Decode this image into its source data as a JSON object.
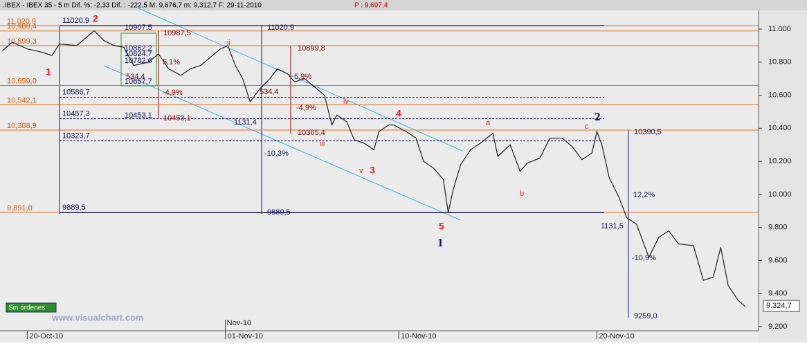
{
  "chart_data": {
    "type": "line",
    "header": ".IBEX - IBEX 35 -  5 m Dif. %: -2,33 Dif. : -222,5 M: 9,676,7 m: 9,312,7 F: 29-11-2010",
    "header_price": "P : 9,697,4",
    "color": "#202020",
    "x": [
      -1.0,
      -0.6,
      0,
      0.6,
      1.0,
      1.3,
      2.0,
      2.7,
      3.1,
      3.5,
      3.9,
      4.3,
      4.9,
      5.3,
      5.7,
      6.2,
      6.6,
      7.0,
      7.4,
      7.8,
      8.1,
      8.4,
      8.7,
      9.0,
      9.4,
      9.8,
      10.1,
      10.5,
      10.8,
      11.2,
      11.6,
      12.0,
      12.3,
      12.5,
      12.9,
      13.2,
      13.6,
      14.0,
      14.2,
      14.6,
      14.8,
      15.3,
      15.7,
      16.0,
      16.4,
      16.8,
      17.0,
      17.2,
      17.5,
      17.9,
      18.3,
      18.8,
      19.0,
      19.5,
      19.9,
      20.2,
      20.7,
      21.1,
      21.6,
      22.0,
      22.4,
      22.8,
      23.0,
      23.2,
      23.5,
      23.9,
      24.2,
      24.6,
      25.1,
      25.5,
      25.9,
      26.3,
      26.9,
      27.3,
      27.7,
      28.0,
      28.3,
      28.7,
      29.0
    ],
    "values": [
      10870,
      10920,
      10880,
      10860,
      10840,
      10910,
      10900,
      10990,
      10930,
      10900,
      10890,
      10780,
      10800,
      10850,
      10760,
      10720,
      10760,
      10780,
      10830,
      10880,
      10900,
      10780,
      10700,
      10560,
      10640,
      10700,
      10760,
      10730,
      10680,
      10700,
      10650,
      10600,
      10420,
      10480,
      10440,
      10330,
      10310,
      10270,
      10380,
      10420,
      10420,
      10380,
      10340,
      10200,
      10160,
      10090,
      9890,
      10030,
      10180,
      10270,
      10310,
      10370,
      10230,
      10300,
      10140,
      10190,
      10220,
      10340,
      10340,
      10290,
      10210,
      10250,
      10380,
      10300,
      10100,
      9980,
      9860,
      9820,
      9620,
      9740,
      9780,
      9700,
      9690,
      9480,
      9500,
      9680,
      9450,
      9360,
      9320
    ],
    "xlim": [
      -1.1,
      29.5
    ],
    "xticks": [
      {
        "value": 0,
        "label": "20-Oct-10"
      },
      {
        "value": 8,
        "label": "01-Nov-10"
      },
      {
        "value": 15,
        "label": "10-Nov-10"
      },
      {
        "value": 23,
        "label": "20-Nov-10"
      }
    ],
    "month_marker": {
      "value": 8,
      "label": "Nov-10"
    },
    "ylim": [
      9175,
      11113
    ],
    "yticks": [
      {
        "value": 9200,
        "label": "9.200"
      },
      {
        "value": 9400,
        "label": "9.400"
      },
      {
        "value": 9600,
        "label": "9.600"
      },
      {
        "value": 9800,
        "label": "9.800"
      },
      {
        "value": 10000,
        "label": "10.000"
      },
      {
        "value": 10200,
        "label": "10.200"
      },
      {
        "value": 10400,
        "label": "10.400"
      },
      {
        "value": 10600,
        "label": "10.600"
      },
      {
        "value": 10800,
        "label": "10.800"
      },
      {
        "value": 11000,
        "label": "11.000"
      }
    ],
    "last_price": {
      "value": 9324.7,
      "label": "9.324,7"
    },
    "levels": [
      {
        "value": 11020.9,
        "label": "11,020,9"
      },
      {
        "value": 10988.4,
        "label": "10,988,4"
      },
      {
        "value": 10899.3,
        "label": "10,899,3"
      },
      {
        "value": 10659.0,
        "label": "10,659,0"
      },
      {
        "value": 10542.1,
        "label": "10,542,1"
      },
      {
        "value": 10388.9,
        "label": "10,388,9"
      },
      {
        "value": 9891.0,
        "label": "9,891,0"
      }
    ],
    "dashed_levels": [
      {
        "value": 10586.7,
        "label": "10586,7"
      },
      {
        "value": 10457.3,
        "label": "10457,3"
      },
      {
        "value": 10323.7,
        "label": "10323,7"
      }
    ],
    "range_lines": [
      {
        "value": 11020.9,
        "label": "11020,9"
      },
      {
        "value": 9889.5,
        "label": "9889,5"
      }
    ],
    "annotations": [
      "2",
      "1",
      "3",
      "4",
      "5",
      "1",
      "2",
      "ii",
      "iii",
      "iv",
      "v",
      "a",
      "b",
      "c",
      "10907,5",
      "10862,2",
      "10824,7",
      "10782,6",
      "10657,7",
      "10453,1",
      "1131,4",
      "-10,3%",
      "9889,5",
      "11020,9",
      "10390,5",
      "12,2%",
      "1131,5",
      "-10,9%",
      "9259,0",
      "10987,5",
      "10899,8",
      "10453,1",
      "10365,4",
      "-4,9%",
      "-4,9%",
      "534,4",
      "534,4",
      "5,1%",
      "5,9%"
    ],
    "status": "Sin órdenes",
    "website": "www.visualchart.com"
  }
}
